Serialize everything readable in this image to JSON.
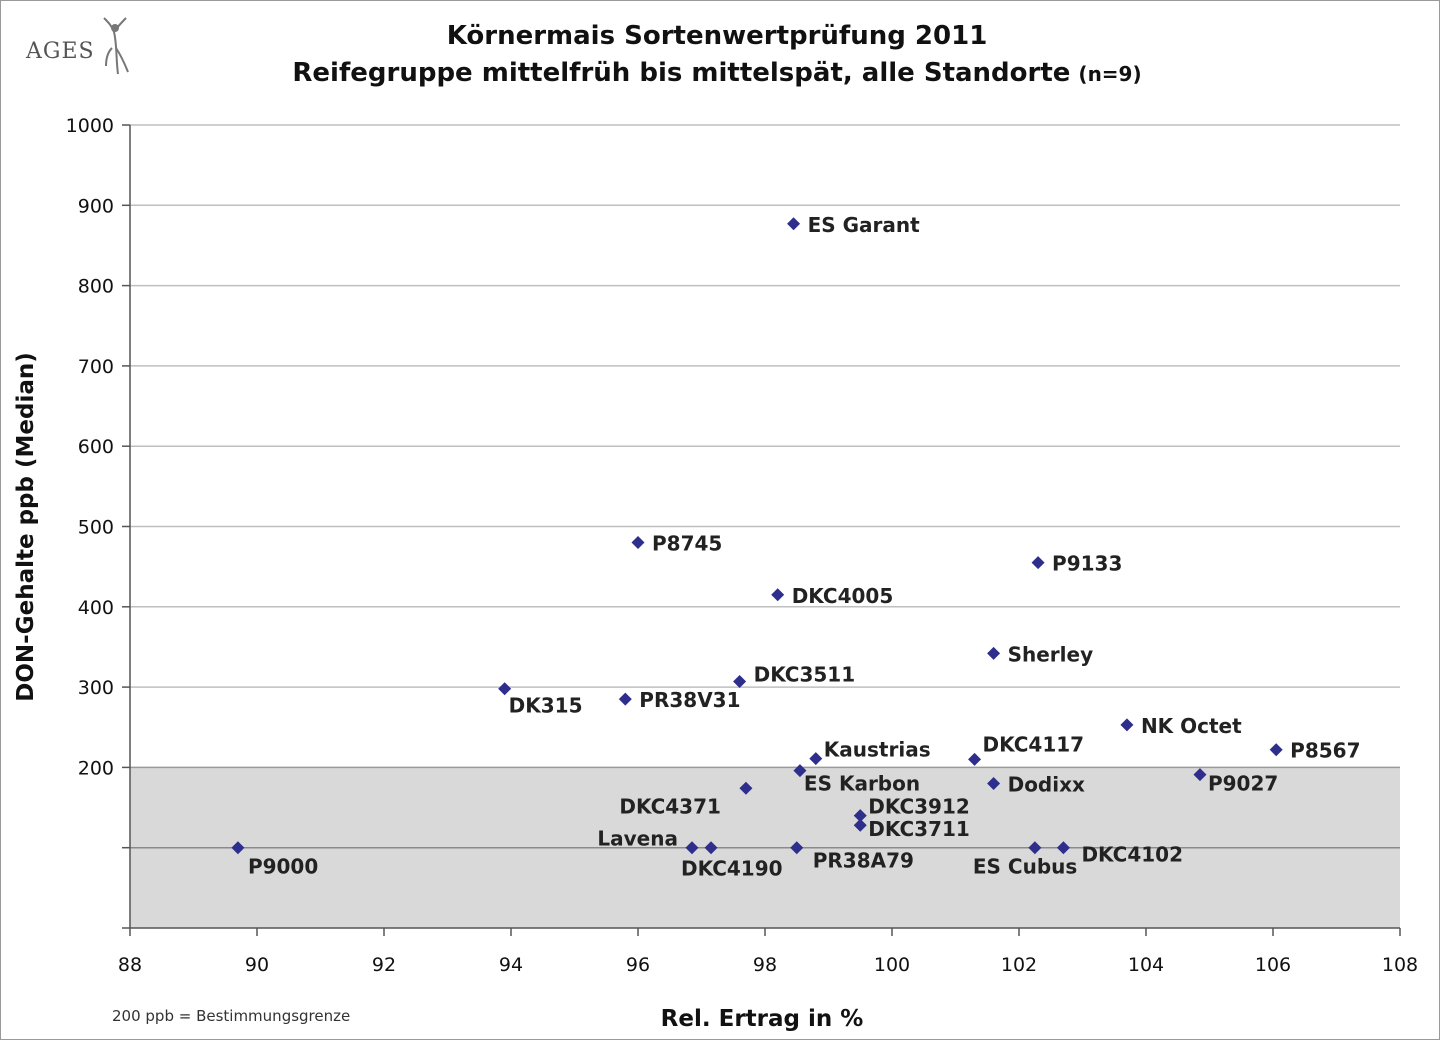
{
  "logo": {
    "text": "AGES"
  },
  "chart_data": {
    "type": "scatter",
    "title": "Körnermais Sortenwertprüfung 2011",
    "subtitle": "Reifegruppe mittelfrüh bis mittelspät, alle Standorte",
    "subtitle_note": "(n=9)",
    "xlabel": "Rel. Ertrag in %",
    "ylabel": "DON-Gehalte ppb (Median)",
    "xlim": [
      88,
      108
    ],
    "ylim": [
      0,
      1000
    ],
    "x_ticks": [
      "88",
      "90",
      "92",
      "94",
      "96",
      "98",
      "100",
      "102",
      "104",
      "106",
      "108"
    ],
    "y_ticks": [
      "200",
      "300",
      "400",
      "500",
      "600",
      "700",
      "800",
      "900",
      "1000"
    ],
    "grid": "horizontal",
    "shaded_band": {
      "from": 0,
      "to": 200,
      "reference_line": 100
    },
    "footnote": "200 ppb = Bestimmungsgrenze",
    "marker_color": "#2e2e8c",
    "band_color": "#d9d9d9",
    "points": [
      {
        "label": "ES Garant",
        "x": 98.45,
        "y": 877
      },
      {
        "label": "P8745",
        "x": 96.0,
        "y": 480
      },
      {
        "label": "P9133",
        "x": 102.3,
        "y": 455
      },
      {
        "label": "DKC4005",
        "x": 98.2,
        "y": 415
      },
      {
        "label": "Sherley",
        "x": 101.6,
        "y": 342
      },
      {
        "label": "DKC3511",
        "x": 97.6,
        "y": 307
      },
      {
        "label": "DK315",
        "x": 93.9,
        "y": 298
      },
      {
        "label": "PR38V31",
        "x": 95.8,
        "y": 285
      },
      {
        "label": "NK Octet",
        "x": 103.7,
        "y": 253
      },
      {
        "label": "P8567",
        "x": 106.05,
        "y": 222
      },
      {
        "label": "Kaustrias",
        "x": 98.8,
        "y": 211
      },
      {
        "label": "DKC4117",
        "x": 101.3,
        "y": 210
      },
      {
        "label": "ES Karbon",
        "x": 98.55,
        "y": 196
      },
      {
        "label": "P9027",
        "x": 104.85,
        "y": 191
      },
      {
        "label": "Dodixx",
        "x": 101.6,
        "y": 180
      },
      {
        "label": "DKC4371",
        "x": 97.7,
        "y": 174
      },
      {
        "label": "DKC3912",
        "x": 99.5,
        "y": 140
      },
      {
        "label": "DKC3711",
        "x": 99.5,
        "y": 128
      },
      {
        "label": "P9000",
        "x": 89.7,
        "y": 100
      },
      {
        "label": "Lavena",
        "x": 96.85,
        "y": 100
      },
      {
        "label": "DKC4190",
        "x": 97.15,
        "y": 100
      },
      {
        "label": "PR38A79",
        "x": 98.5,
        "y": 100
      },
      {
        "label": "ES Cubus",
        "x": 102.25,
        "y": 100
      },
      {
        "label": "DKC4102",
        "x": 102.7,
        "y": 100
      }
    ]
  }
}
